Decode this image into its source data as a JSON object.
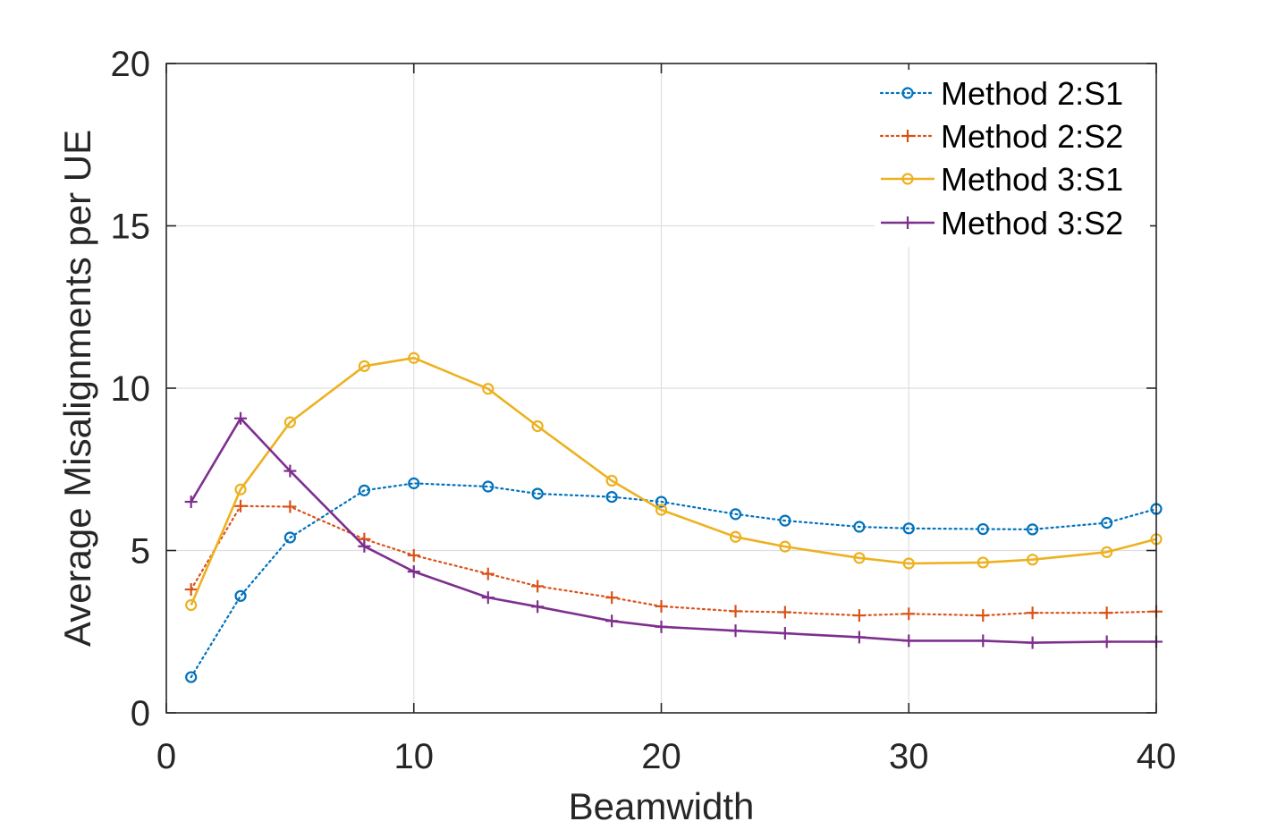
{
  "chart_data": {
    "type": "line",
    "title": "",
    "xlabel": "Beamwidth",
    "ylabel": "Average Misalignments per UE",
    "xlim": [
      0,
      40
    ],
    "ylim": [
      0,
      20
    ],
    "xticks": [
      0,
      10,
      20,
      30,
      40
    ],
    "yticks": [
      0,
      5,
      10,
      15,
      20
    ],
    "xtick_labels": [
      "0",
      "10",
      "20",
      "30",
      "40"
    ],
    "ytick_labels": [
      "0",
      "5",
      "10",
      "15",
      "20"
    ],
    "grid": true,
    "legend_position": "top-right",
    "x": [
      1,
      3,
      5,
      8,
      10,
      13,
      15,
      18,
      20,
      23,
      25,
      28,
      30,
      33,
      35,
      38,
      40
    ],
    "series": [
      {
        "name": "Method 2:S1",
        "color": "#0072BD",
        "line_style": "dotted",
        "marker": "circle",
        "values": [
          1.1,
          3.6,
          5.4,
          6.85,
          7.07,
          6.97,
          6.75,
          6.65,
          6.5,
          6.12,
          5.92,
          5.73,
          5.68,
          5.66,
          5.65,
          5.85,
          6.28
        ]
      },
      {
        "name": "Method 2:S2",
        "color": "#D95319",
        "line_style": "dotted",
        "marker": "plus",
        "values": [
          3.8,
          6.37,
          6.35,
          5.35,
          4.85,
          4.28,
          3.9,
          3.55,
          3.28,
          3.13,
          3.1,
          3.0,
          3.05,
          3.0,
          3.08,
          3.08,
          3.12
        ]
      },
      {
        "name": "Method 3:S1",
        "color": "#EDB120",
        "line_style": "solid",
        "marker": "circle",
        "values": [
          3.32,
          6.88,
          8.95,
          10.68,
          10.93,
          9.98,
          8.83,
          7.15,
          6.25,
          5.42,
          5.12,
          4.77,
          4.6,
          4.63,
          4.72,
          4.95,
          5.35
        ]
      },
      {
        "name": "Method 3:S2",
        "color": "#7E2F8E",
        "line_style": "solid",
        "marker": "plus",
        "values": [
          6.5,
          9.07,
          7.45,
          5.13,
          4.35,
          3.55,
          3.27,
          2.83,
          2.65,
          2.53,
          2.45,
          2.33,
          2.22,
          2.22,
          2.16,
          2.19,
          2.19
        ]
      }
    ]
  }
}
